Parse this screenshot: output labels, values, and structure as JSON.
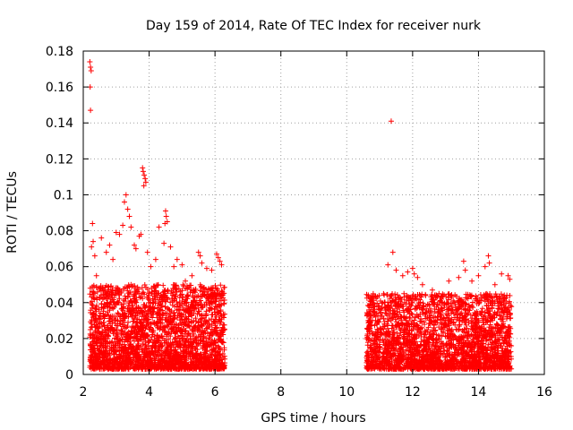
{
  "chart_data": {
    "type": "scatter",
    "title": "Day 159 of 2014, Rate Of TEC Index for receiver nurk",
    "xlabel": "GPS time / hours",
    "ylabel": "ROTI / TECUs",
    "xlim": [
      2,
      16
    ],
    "ylim": [
      0,
      0.18
    ],
    "x_ticks": [
      2,
      4,
      6,
      8,
      10,
      12,
      14,
      16
    ],
    "x_tick_labels": [
      "2",
      "4",
      "6",
      "8",
      "10",
      "12",
      "14",
      "16"
    ],
    "y_ticks": [
      0,
      0.02,
      0.04,
      0.06,
      0.08,
      0.1,
      0.12,
      0.14,
      0.16,
      0.18
    ],
    "y_tick_labels": [
      "0",
      "0.02",
      "0.04",
      "0.06",
      "0.08",
      "0.1",
      "0.12",
      "0.14",
      "0.16",
      "0.18"
    ],
    "grid": true,
    "marker": "+",
    "marker_color": "#ff0000",
    "series": [
      {
        "name": "ROTI",
        "points": [
          [
            2.2,
            0.174
          ],
          [
            2.22,
            0.171
          ],
          [
            2.24,
            0.169
          ],
          [
            2.21,
            0.16
          ],
          [
            2.22,
            0.147
          ],
          [
            2.28,
            0.084
          ],
          [
            2.3,
            0.074
          ],
          [
            2.25,
            0.071
          ],
          [
            2.35,
            0.066
          ],
          [
            2.4,
            0.055
          ],
          [
            2.55,
            0.076
          ],
          [
            2.7,
            0.068
          ],
          [
            2.8,
            0.072
          ],
          [
            2.9,
            0.064
          ],
          [
            3.0,
            0.079
          ],
          [
            3.1,
            0.078
          ],
          [
            3.2,
            0.083
          ],
          [
            3.25,
            0.096
          ],
          [
            3.3,
            0.1
          ],
          [
            3.35,
            0.092
          ],
          [
            3.4,
            0.088
          ],
          [
            3.45,
            0.082
          ],
          [
            3.55,
            0.072
          ],
          [
            3.6,
            0.07
          ],
          [
            3.7,
            0.077
          ],
          [
            3.75,
            0.078
          ],
          [
            3.8,
            0.115
          ],
          [
            3.82,
            0.113
          ],
          [
            3.85,
            0.111
          ],
          [
            3.88,
            0.109
          ],
          [
            3.9,
            0.107
          ],
          [
            3.84,
            0.105
          ],
          [
            3.95,
            0.068
          ],
          [
            4.05,
            0.06
          ],
          [
            4.2,
            0.064
          ],
          [
            4.3,
            0.082
          ],
          [
            4.45,
            0.073
          ],
          [
            4.5,
            0.091
          ],
          [
            4.52,
            0.088
          ],
          [
            4.55,
            0.085
          ],
          [
            4.48,
            0.084
          ],
          [
            4.65,
            0.071
          ],
          [
            4.75,
            0.06
          ],
          [
            4.85,
            0.064
          ],
          [
            5.0,
            0.061
          ],
          [
            5.1,
            0.052
          ],
          [
            5.3,
            0.055
          ],
          [
            5.5,
            0.068
          ],
          [
            5.55,
            0.066
          ],
          [
            5.6,
            0.062
          ],
          [
            5.75,
            0.059
          ],
          [
            5.9,
            0.058
          ],
          [
            6.05,
            0.067
          ],
          [
            6.1,
            0.065
          ],
          [
            6.15,
            0.063
          ],
          [
            6.2,
            0.061
          ],
          [
            11.35,
            0.141
          ],
          [
            11.4,
            0.068
          ],
          [
            11.25,
            0.061
          ],
          [
            11.5,
            0.058
          ],
          [
            11.7,
            0.055
          ],
          [
            11.85,
            0.057
          ],
          [
            12.0,
            0.059
          ],
          [
            12.05,
            0.056
          ],
          [
            12.15,
            0.054
          ],
          [
            12.3,
            0.05
          ],
          [
            12.6,
            0.047
          ],
          [
            12.8,
            0.045
          ],
          [
            13.1,
            0.052
          ],
          [
            13.4,
            0.054
          ],
          [
            13.55,
            0.063
          ],
          [
            13.6,
            0.058
          ],
          [
            13.8,
            0.052
          ],
          [
            14.0,
            0.055
          ],
          [
            14.2,
            0.06
          ],
          [
            14.3,
            0.066
          ],
          [
            14.33,
            0.062
          ],
          [
            14.5,
            0.05
          ],
          [
            14.7,
            0.056
          ],
          [
            14.9,
            0.055
          ],
          [
            14.95,
            0.053
          ]
        ]
      }
    ],
    "dense_clusters": [
      {
        "x_range": [
          2.2,
          6.3
        ],
        "y_range": [
          0.003,
          0.05
        ],
        "note": "dense band of ROTI values"
      },
      {
        "x_range": [
          10.6,
          15.0
        ],
        "y_range": [
          0.003,
          0.045
        ],
        "note": "dense band of ROTI values"
      }
    ]
  }
}
